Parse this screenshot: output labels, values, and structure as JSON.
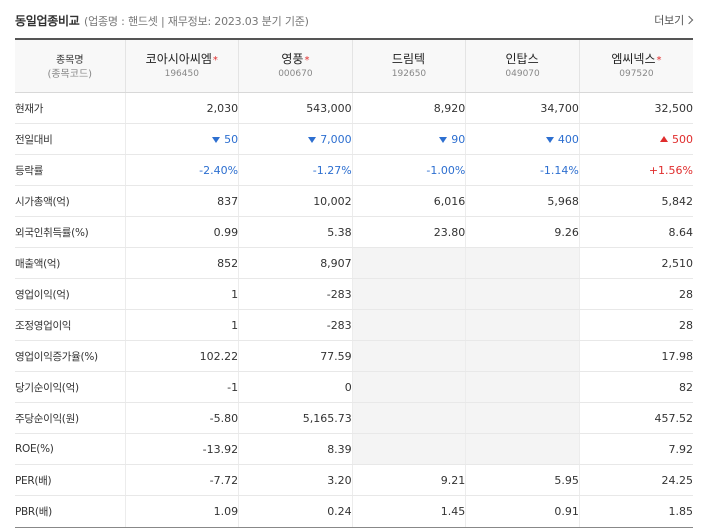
{
  "header": {
    "title": "동일업종비교",
    "subtitle": "(업종명 : 핸드셋 | 재무정보: 2023.03 분기 기준)",
    "more_label": "더보기"
  },
  "table": {
    "first_header": {
      "name": "종목명",
      "code": "(종목코드)"
    },
    "companies": [
      {
        "name": "코아시아씨엠",
        "code": "196450",
        "star": "*"
      },
      {
        "name": "영풍",
        "code": "000670",
        "star": "*"
      },
      {
        "name": "드림텍",
        "code": "192650",
        "star": ""
      },
      {
        "name": "인탑스",
        "code": "049070",
        "star": ""
      },
      {
        "name": "엠씨넥스",
        "code": "097520",
        "star": "*"
      }
    ],
    "rows": [
      {
        "label": "현재가",
        "values": [
          "2,030",
          "543,000",
          "8,920",
          "34,700",
          "32,500"
        ]
      },
      {
        "label": "전일대비",
        "type": "change",
        "directions": [
          "down",
          "down",
          "down",
          "down",
          "up"
        ],
        "values": [
          "50",
          "7,000",
          "90",
          "400",
          "500"
        ]
      },
      {
        "label": "등락률",
        "type": "rate",
        "directions": [
          "down",
          "down",
          "down",
          "down",
          "up"
        ],
        "values": [
          "-2.40%",
          "-1.27%",
          "-1.00%",
          "-1.14%",
          "+1.56%"
        ]
      },
      {
        "label": "시가총액(억)",
        "values": [
          "837",
          "10,002",
          "6,016",
          "5,968",
          "5,842"
        ]
      },
      {
        "label": "외국인취득률(%)",
        "values": [
          "0.99",
          "5.38",
          "23.80",
          "9.26",
          "8.64"
        ]
      },
      {
        "label": "매출액(억)",
        "values": [
          "852",
          "8,907",
          "",
          "",
          "2,510"
        ]
      },
      {
        "label": "영업이익(억)",
        "values": [
          "1",
          "-283",
          "",
          "",
          "28"
        ]
      },
      {
        "label": "조정영업이익",
        "values": [
          "1",
          "-283",
          "",
          "",
          "28"
        ]
      },
      {
        "label": "영업이익증가율(%)",
        "values": [
          "102.22",
          "77.59",
          "",
          "",
          "17.98"
        ]
      },
      {
        "label": "당기순이익(억)",
        "values": [
          "-1",
          "0",
          "",
          "",
          "82"
        ]
      },
      {
        "label": "주당순이익(원)",
        "values": [
          "-5.80",
          "5,165.73",
          "",
          "",
          "457.52"
        ]
      },
      {
        "label": "ROE(%)",
        "values": [
          "-13.92",
          "8.39",
          "",
          "",
          "7.92"
        ]
      },
      {
        "label": "PER(배)",
        "values": [
          "-7.72",
          "3.20",
          "9.21",
          "5.95",
          "24.25"
        ]
      },
      {
        "label": "PBR(배)",
        "values": [
          "1.09",
          "0.24",
          "1.45",
          "0.91",
          "1.85"
        ]
      }
    ]
  },
  "colors": {
    "up": "#e02d2d",
    "down": "#2d6fd0",
    "header_border": "#555555",
    "empty_cell": "#f4f4f4"
  }
}
